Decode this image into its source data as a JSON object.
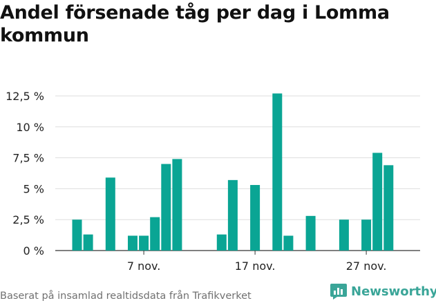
{
  "title": "Andel försenade tåg per dag i Lomma kommun",
  "source": "Baserat på insamlad realtidsdata från Trafikverket",
  "brand": {
    "name": "Newsworthy",
    "color": "#3aa598",
    "icon": "newsworthy-logo-icon"
  },
  "chart_data": {
    "type": "bar",
    "title": "Andel försenade tåg per dag i Lomma kommun",
    "xlabel": "",
    "ylabel": "",
    "x_ticks": [
      "7 nov.",
      "17 nov.",
      "27 nov."
    ],
    "yticks": [
      {
        "value": 0,
        "label": "0 %"
      },
      {
        "value": 2.5,
        "label": "2,5 %"
      },
      {
        "value": 5,
        "label": "5 %"
      },
      {
        "value": 7.5,
        "label": "7,5 %"
      },
      {
        "value": 10,
        "label": "10 %"
      },
      {
        "value": 12.5,
        "label": "12,5 %"
      }
    ],
    "ylim": [
      0,
      12.5
    ],
    "grid": true,
    "bar_color": "#0aa594",
    "x": [
      "1 nov.",
      "2 nov.",
      "3 nov.",
      "4 nov.",
      "5 nov.",
      "6 nov.",
      "7 nov.",
      "8 nov.",
      "9 nov.",
      "10 nov.",
      "11 nov.",
      "12 nov.",
      "13 nov.",
      "14 nov.",
      "15 nov.",
      "16 nov.",
      "17 nov.",
      "18 nov.",
      "19 nov.",
      "20 nov.",
      "21 nov.",
      "22 nov.",
      "23 nov.",
      "24 nov.",
      "25 nov.",
      "26 nov.",
      "27 nov.",
      "28 nov.",
      "29 nov.",
      "30 nov."
    ],
    "values": [
      2.5,
      1.3,
      0,
      5.9,
      0,
      1.2,
      1.2,
      2.7,
      7.0,
      7.4,
      0,
      0,
      0,
      1.3,
      5.7,
      0,
      5.3,
      0,
      12.7,
      1.2,
      0,
      2.8,
      0,
      0,
      2.5,
      0,
      2.5,
      7.9,
      6.9,
      0
    ]
  }
}
